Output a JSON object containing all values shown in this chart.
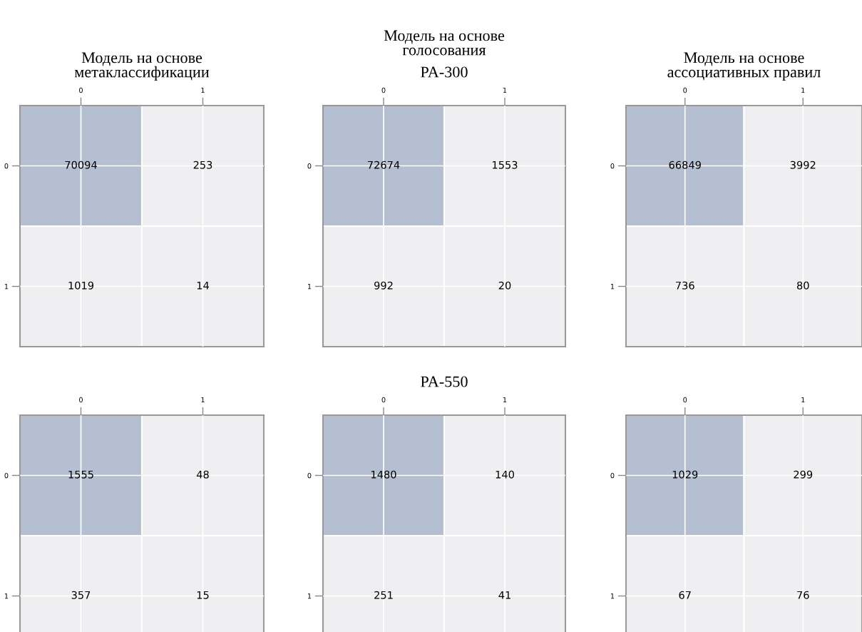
{
  "chart_data": [
    {
      "type": "heatmap",
      "title": "Модель на основе\nметаклассификации",
      "categories": [
        "0",
        "1"
      ],
      "y_categories": [
        "0",
        "1"
      ],
      "cells": [
        [
          70094,
          253
        ],
        [
          1019,
          14
        ]
      ],
      "data_labels": true,
      "grid": true
    },
    {
      "type": "heatmap",
      "title": "Модель на основе\nголосования",
      "subtitle": "PA-300",
      "categories": [
        "0",
        "1"
      ],
      "y_categories": [
        "0",
        "1"
      ],
      "cells": [
        [
          72674,
          1553
        ],
        [
          992,
          20
        ]
      ],
      "data_labels": true,
      "grid": true
    },
    {
      "type": "heatmap",
      "title": "Модель на основе\nассоциативных правил",
      "categories": [
        "0",
        "1"
      ],
      "y_categories": [
        "0",
        "1"
      ],
      "cells": [
        [
          66849,
          3992
        ],
        [
          736,
          80
        ]
      ],
      "data_labels": true,
      "grid": true
    },
    {
      "type": "heatmap",
      "categories": [
        "0",
        "1"
      ],
      "y_categories": [
        "0",
        "1"
      ],
      "cells": [
        [
          1555,
          48
        ],
        [
          357,
          15
        ]
      ],
      "data_labels": true,
      "grid": true
    },
    {
      "type": "heatmap",
      "title": "PA-550",
      "categories": [
        "0",
        "1"
      ],
      "y_categories": [
        "0",
        "1"
      ],
      "cells": [
        [
          1480,
          140
        ],
        [
          251,
          41
        ]
      ],
      "data_labels": true,
      "grid": true
    },
    {
      "type": "heatmap",
      "categories": [
        "0",
        "1"
      ],
      "y_categories": [
        "0",
        "1"
      ],
      "cells": [
        [
          1029,
          299
        ],
        [
          67,
          76
        ]
      ],
      "data_labels": true,
      "grid": true
    }
  ]
}
